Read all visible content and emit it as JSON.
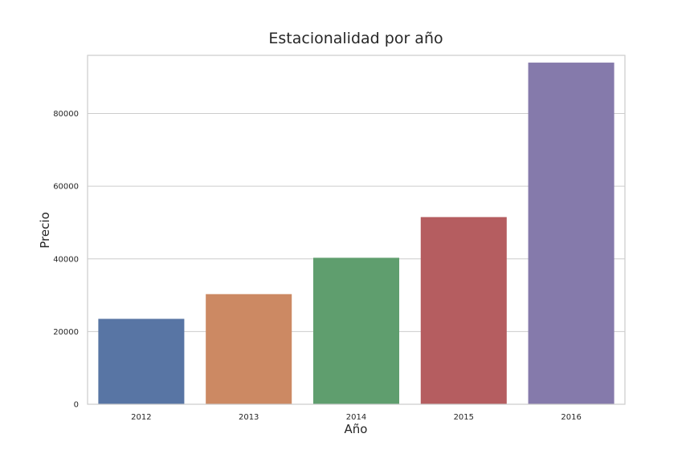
{
  "chart_data": {
    "type": "bar",
    "title": "Estacionalidad por año",
    "xlabel": "Año",
    "ylabel": "Precio",
    "categories": [
      "2012",
      "2013",
      "2014",
      "2015",
      "2016"
    ],
    "values": [
      23500,
      30300,
      40300,
      51500,
      94000
    ],
    "colors": [
      "#5875a4",
      "#cc8963",
      "#5f9e6e",
      "#b55d60",
      "#857aab"
    ],
    "ylim": [
      0,
      96000
    ],
    "yticks": [
      0,
      20000,
      40000,
      60000,
      80000
    ],
    "ytick_labels": [
      "0",
      "20000",
      "40000",
      "60000",
      "80000"
    ],
    "grid": true,
    "legend": "none"
  }
}
